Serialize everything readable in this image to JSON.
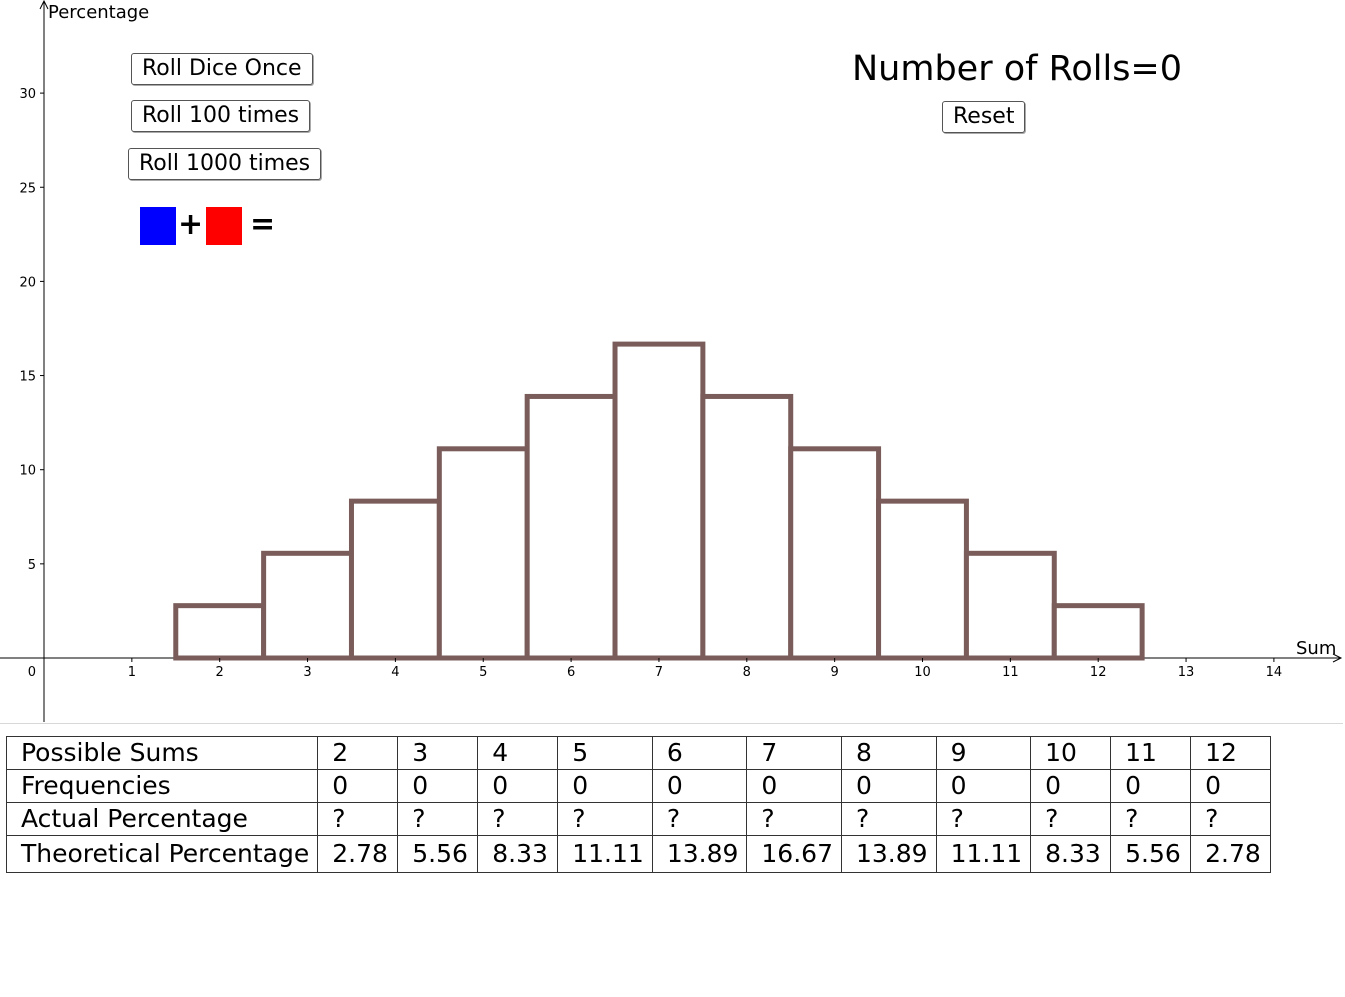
{
  "buttons": {
    "roll_once": "Roll Dice Once",
    "roll_100": "Roll 100 times",
    "roll_1000": "Roll 1000 times",
    "reset": "Reset"
  },
  "rolls_text": "Number of Rolls=0",
  "dice": {
    "plus": "+",
    "equals": "=",
    "colors": {
      "die1": "#0000ff",
      "die2": "#ff0000"
    }
  },
  "chart_data": {
    "type": "bar",
    "xlabel": "Sum",
    "ylabel": "Percentage",
    "xlim": [
      0,
      14
    ],
    "ylim": [
      0,
      30
    ],
    "x_ticks": [
      1,
      2,
      3,
      4,
      5,
      6,
      7,
      8,
      9,
      10,
      11,
      12,
      13,
      14
    ],
    "y_ticks": [
      0,
      5,
      10,
      15,
      20,
      25,
      30
    ],
    "origin_label": "0",
    "categories": [
      2,
      3,
      4,
      5,
      6,
      7,
      8,
      9,
      10,
      11,
      12
    ],
    "values": [
      2.78,
      5.56,
      8.33,
      11.11,
      13.89,
      16.67,
      13.89,
      11.11,
      8.33,
      5.56,
      2.78
    ],
    "bar_color": "#7a5d5b",
    "grid": false
  },
  "table": {
    "rows": [
      {
        "label": "Possible Sums",
        "cells": [
          "2",
          "3",
          "4",
          "5",
          "6",
          "7",
          "8",
          "9",
          "10",
          "11",
          "12"
        ]
      },
      {
        "label": "Frequencies",
        "cells": [
          "0",
          "0",
          "0",
          "0",
          "0",
          "0",
          "0",
          "0",
          "0",
          "0",
          "0"
        ]
      },
      {
        "label": "Actual Percentage",
        "cells": [
          "?",
          "?",
          "?",
          "?",
          "?",
          "?",
          "?",
          "?",
          "?",
          "?",
          "?"
        ]
      },
      {
        "label": "Theoretical Percentage",
        "cells": [
          "2.78",
          "5.56",
          "8.33",
          "11.11",
          "13.89",
          "16.67",
          "13.89",
          "11.11",
          "8.33",
          "5.56",
          "2.78"
        ]
      }
    ]
  }
}
